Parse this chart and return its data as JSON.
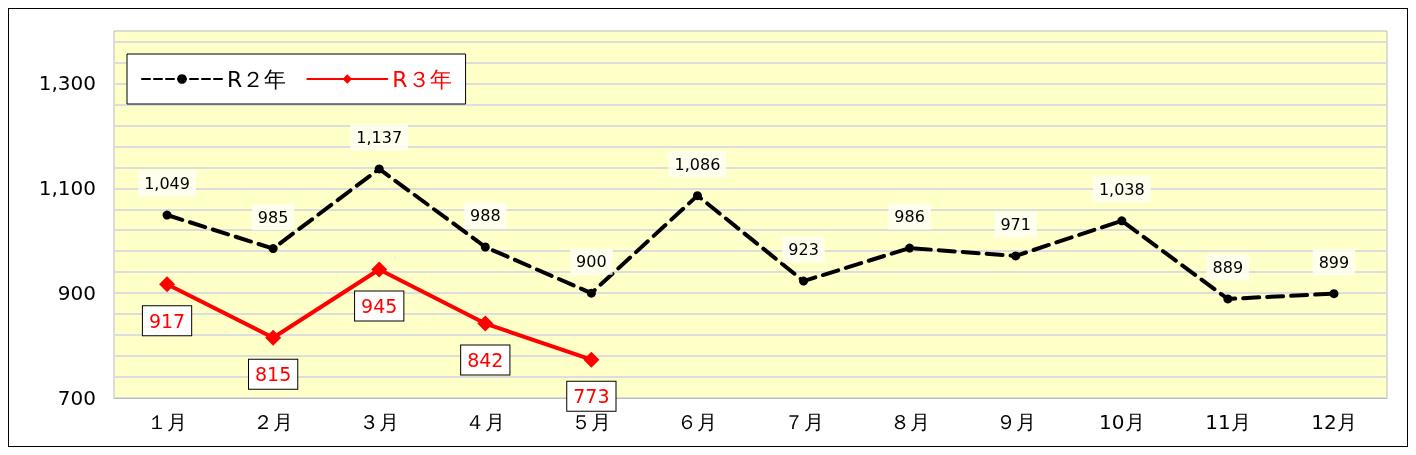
{
  "chart_data": {
    "type": "line",
    "categories": [
      "１月",
      "２月",
      "３月",
      "４月",
      "５月",
      "６月",
      "７月",
      "８月",
      "９月",
      "10月",
      "11月",
      "12月"
    ],
    "series": [
      {
        "name": "R２年",
        "color": "#000000",
        "marker": "circle",
        "line_style": "dashed",
        "values": [
          1049,
          985,
          1137,
          988,
          900,
          1086,
          923,
          986,
          971,
          1038,
          889,
          899
        ],
        "value_labels": [
          "1,049",
          "985",
          "1,137",
          "988",
          "900",
          "1,086",
          "923",
          "986",
          "971",
          "1,038",
          "889",
          "899"
        ]
      },
      {
        "name": "R３年",
        "color": "#ff0000",
        "marker": "diamond",
        "line_style": "solid",
        "values": [
          917,
          815,
          945,
          842,
          773,
          null,
          null,
          null,
          null,
          null,
          null,
          null
        ],
        "value_labels": [
          "917",
          "815",
          "945",
          "842",
          "773",
          null,
          null,
          null,
          null,
          null,
          null,
          null
        ]
      }
    ],
    "ylim": [
      700,
      1400
    ],
    "yticks": [
      {
        "value": 700,
        "label": "700"
      },
      {
        "value": 740,
        "label": null
      },
      {
        "value": 780,
        "label": null
      },
      {
        "value": 820,
        "label": null
      },
      {
        "value": 860,
        "label": null
      },
      {
        "value": 900,
        "label": "900"
      },
      {
        "value": 940,
        "label": null
      },
      {
        "value": 980,
        "label": null
      },
      {
        "value": 1020,
        "label": null
      },
      {
        "value": 1060,
        "label": null
      },
      {
        "value": 1100,
        "label": "1,100"
      },
      {
        "value": 1140,
        "label": null
      },
      {
        "value": 1180,
        "label": null
      },
      {
        "value": 1220,
        "label": null
      },
      {
        "value": 1260,
        "label": null
      },
      {
        "value": 1300,
        "label": "1,300"
      },
      {
        "value": 1340,
        "label": null
      },
      {
        "value": 1380,
        "label": null
      }
    ],
    "grid": "y",
    "legend": "top left"
  }
}
